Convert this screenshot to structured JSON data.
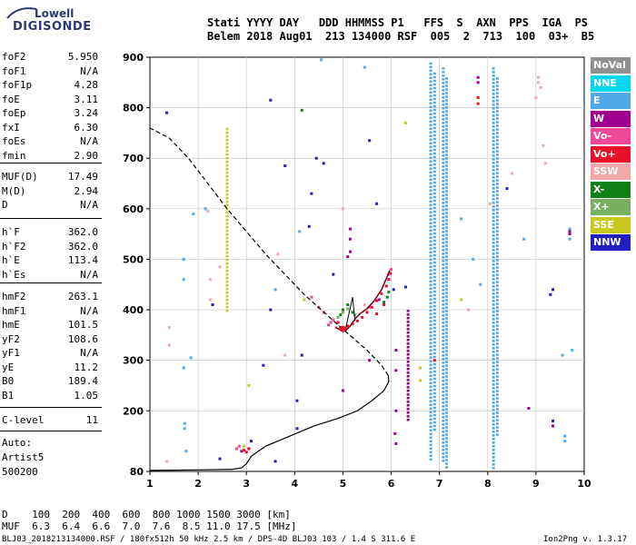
{
  "logo": {
    "line1": "Lowell",
    "line2": "DIGISONDE"
  },
  "header": {
    "line1": "Stati YYYY DAY   DDD HHMMSS P1   FFS  S  AXN  PPS  IGA  PS",
    "line2": "Belem 2018 Aug01  213 134000 RSF  005  2  713  100  03+  B5"
  },
  "params": {
    "g1": [
      {
        "name": "foF2",
        "value": "5.950"
      },
      {
        "name": "foF1",
        "value": "N/A"
      },
      {
        "name": "foF1p",
        "value": "4.28"
      },
      {
        "name": "foE",
        "value": "3.11"
      },
      {
        "name": "foEp",
        "value": "3.24"
      },
      {
        "name": "fxI",
        "value": "6.30"
      },
      {
        "name": "foEs",
        "value": "N/A"
      },
      {
        "name": "fmin",
        "value": "2.90"
      }
    ],
    "g2": [
      {
        "name": "MUF(D)",
        "value": "17.49"
      },
      {
        "name": "M(D)",
        "value": "2.94"
      },
      {
        "name": "D",
        "value": "N/A"
      }
    ],
    "g3": [
      {
        "name": "h`F",
        "value": "362.0"
      },
      {
        "name": "h`F2",
        "value": "362.0"
      },
      {
        "name": "h`E",
        "value": "113.4"
      },
      {
        "name": "h`Es",
        "value": "N/A"
      }
    ],
    "g4": [
      {
        "name": "hmF2",
        "value": "263.1"
      },
      {
        "name": "hmF1",
        "value": "N/A"
      },
      {
        "name": "hmE",
        "value": "101.5"
      },
      {
        "name": "yF2",
        "value": "108.6"
      },
      {
        "name": "yF1",
        "value": "N/A"
      },
      {
        "name": "yE",
        "value": "11.2"
      },
      {
        "name": "B0",
        "value": "189.4"
      },
      {
        "name": "B1",
        "value": "1.05"
      }
    ],
    "g5": [
      {
        "name": "C-level",
        "value": "11"
      }
    ]
  },
  "auto": {
    "l1": "Auto:",
    "l2": "Artist5",
    "l3": "500200"
  },
  "legend": [
    {
      "label": "NoVal",
      "color": "#909090"
    },
    {
      "label": "NNE",
      "color": "#00d8f0"
    },
    {
      "label": "E",
      "color": "#50a8e8"
    },
    {
      "label": "W",
      "color": "#a00090"
    },
    {
      "label": "Vo-",
      "color": "#f04898"
    },
    {
      "label": "Vo+",
      "color": "#e8102a"
    },
    {
      "label": "SSW",
      "color": "#f0a8a8"
    },
    {
      "label": "X-",
      "color": "#108018"
    },
    {
      "label": "X+",
      "color": "#78b060"
    },
    {
      "label": "SSE",
      "color": "#c8c820"
    },
    {
      "label": "NNW",
      "color": "#2020c0"
    }
  ],
  "footer": {
    "row1": "D    100  200  400  600  800 1000 1500 3000 [km]",
    "row2": "MUF  6.3  6.4  6.6  7.0  7.6  8.5 11.0 17.5 [MHz]",
    "source": "BLJ03_2018213134000.RSF / 180fx512h 50 kHz 2.5 km / DPS-4D BLJ03 103 / 1.4 S 311.6 E",
    "version": "Ion2Png v. 1.3.17"
  },
  "chart_data": {
    "type": "scatter",
    "xlim": [
      1,
      10
    ],
    "ylim": [
      80,
      900
    ],
    "xticks": [
      1,
      2,
      3,
      4,
      5,
      6,
      7,
      8,
      9,
      10
    ],
    "yticks": [
      80,
      200,
      300,
      400,
      500,
      600,
      700,
      800,
      900
    ],
    "grid": true,
    "series": [
      {
        "name": "E",
        "color": "#50a8e8",
        "mode": "columns",
        "columns": [
          {
            "x": 6.82,
            "y0": 100,
            "y1": 890
          },
          {
            "x": 6.9,
            "y0": 160,
            "y1": 870
          },
          {
            "x": 7.08,
            "y0": 100,
            "y1": 880
          },
          {
            "x": 7.15,
            "y0": 90,
            "y1": 860
          },
          {
            "x": 8.12,
            "y0": 82,
            "y1": 880
          },
          {
            "x": 8.2,
            "y0": 150,
            "y1": 860
          }
        ],
        "points": [
          [
            1.7,
            500
          ],
          [
            1.7,
            460
          ],
          [
            1.7,
            285
          ],
          [
            1.72,
            175
          ],
          [
            1.72,
            165
          ],
          [
            1.75,
            120
          ],
          [
            1.9,
            590
          ],
          [
            1.85,
            305
          ],
          [
            2.15,
            600
          ],
          [
            3.6,
            440
          ],
          [
            4.1,
            555
          ],
          [
            4.55,
            895
          ],
          [
            5.45,
            880
          ],
          [
            7.45,
            580
          ],
          [
            7.7,
            500
          ],
          [
            7.85,
            450
          ],
          [
            8.75,
            540
          ],
          [
            9.55,
            310
          ],
          [
            9.6,
            150
          ],
          [
            9.6,
            140
          ],
          [
            9.7,
            560
          ],
          [
            9.7,
            540
          ],
          [
            9.75,
            320
          ]
        ]
      },
      {
        "name": "W",
        "color": "#a00090",
        "mode": "columns",
        "columns": [
          {
            "x": 6.35,
            "y0": 180,
            "y1": 400
          }
        ],
        "points": [
          [
            5.15,
            560
          ],
          [
            5.15,
            540
          ],
          [
            5.15,
            515
          ],
          [
            5.1,
            505
          ],
          [
            5.55,
            300
          ],
          [
            5.75,
            420
          ],
          [
            6.1,
            320
          ],
          [
            6.1,
            280
          ],
          [
            6.1,
            200
          ],
          [
            6.08,
            155
          ],
          [
            6.1,
            135
          ],
          [
            5.0,
            240
          ],
          [
            7.8,
            860
          ],
          [
            7.8,
            850
          ],
          [
            8.85,
            205
          ],
          [
            9.7,
            555
          ],
          [
            9.7,
            550
          ],
          [
            9.35,
            170
          ],
          [
            3.05,
            125
          ],
          [
            2.9,
            120
          ]
        ]
      },
      {
        "name": "NNW",
        "color": "#2020c0",
        "mode": "points",
        "points": [
          [
            1.35,
            790
          ],
          [
            3.5,
            815
          ],
          [
            3.6,
            100
          ],
          [
            3.8,
            685
          ],
          [
            4.15,
            310
          ],
          [
            4.3,
            565
          ],
          [
            4.6,
            690
          ],
          [
            5.55,
            735
          ],
          [
            5.7,
            610
          ],
          [
            5.95,
            460
          ],
          [
            6.05,
            440
          ],
          [
            3.35,
            290
          ],
          [
            3.5,
            400
          ],
          [
            4.05,
            220
          ],
          [
            4.05,
            165
          ],
          [
            2.45,
            105
          ],
          [
            3.1,
            140
          ],
          [
            4.35,
            630
          ],
          [
            9.35,
            180
          ],
          [
            9.35,
            440
          ],
          [
            9.3,
            430
          ],
          [
            8.4,
            640
          ],
          [
            6.3,
            445
          ],
          [
            4.45,
            700
          ],
          [
            2.3,
            410
          ],
          [
            4.8,
            470
          ]
        ]
      },
      {
        "name": "Vo+",
        "color": "#e8102a",
        "mode": "points",
        "points": [
          [
            4.9,
            375
          ],
          [
            4.95,
            365
          ],
          [
            5.0,
            360
          ],
          [
            5.05,
            362
          ],
          [
            5.1,
            368
          ],
          [
            5.2,
            372
          ],
          [
            5.3,
            378
          ],
          [
            5.4,
            385
          ],
          [
            5.5,
            395
          ],
          [
            5.6,
            405
          ],
          [
            5.7,
            418
          ],
          [
            5.8,
            432
          ],
          [
            5.9,
            447
          ],
          [
            5.95,
            460
          ],
          [
            5.98,
            472
          ],
          [
            5.7,
            392
          ],
          [
            5.85,
            410
          ],
          [
            7.8,
            820
          ],
          [
            7.8,
            808
          ],
          [
            6.9,
            300
          ],
          [
            3.05,
            125
          ],
          [
            3.0,
            118
          ],
          [
            2.95,
            122
          ]
        ]
      },
      {
        "name": "Vo-",
        "color": "#f04898",
        "mode": "points",
        "points": [
          [
            4.7,
            370
          ],
          [
            4.75,
            375
          ],
          [
            4.8,
            380
          ],
          [
            4.6,
            395
          ],
          [
            4.5,
            405
          ],
          [
            4.35,
            425
          ],
          [
            5.55,
            405
          ],
          [
            5.95,
            470
          ],
          [
            6.0,
            480
          ],
          [
            2.8,
            125
          ],
          [
            2.85,
            130
          ]
        ]
      },
      {
        "name": "SSW",
        "color": "#f0a8a8",
        "mode": "points",
        "points": [
          [
            1.4,
            365
          ],
          [
            1.4,
            330
          ],
          [
            1.35,
            100
          ],
          [
            2.2,
            595
          ],
          [
            2.25,
            460
          ],
          [
            2.25,
            420
          ],
          [
            2.45,
            485
          ],
          [
            3.8,
            310
          ],
          [
            4.85,
            365
          ],
          [
            5.45,
            410
          ],
          [
            7.6,
            400
          ],
          [
            8.05,
            610
          ],
          [
            9.0,
            820
          ],
          [
            9.05,
            860
          ],
          [
            9.05,
            850
          ],
          [
            9.1,
            840
          ],
          [
            9.15,
            725
          ],
          [
            9.2,
            690
          ],
          [
            8.5,
            670
          ],
          [
            3.65,
            510
          ],
          [
            5.0,
            600
          ]
        ]
      },
      {
        "name": "X-",
        "color": "#108018",
        "mode": "points",
        "points": [
          [
            4.15,
            795
          ],
          [
            4.95,
            390
          ],
          [
            5.0,
            400
          ],
          [
            5.1,
            410
          ],
          [
            5.2,
            395
          ],
          [
            5.85,
            415
          ],
          [
            5.92,
            425
          ],
          [
            5.95,
            435
          ]
        ]
      },
      {
        "name": "X+",
        "color": "#78b060",
        "mode": "points",
        "points": [
          [
            4.9,
            385
          ],
          [
            5.0,
            395
          ],
          [
            5.1,
            402
          ],
          [
            5.25,
            390
          ]
        ]
      },
      {
        "name": "SSE",
        "color": "#c8c820",
        "mode": "columns",
        "columns": [
          {
            "x": 2.6,
            "y0": 400,
            "y1": 760
          }
        ],
        "points": [
          [
            3.05,
            250
          ],
          [
            2.95,
            130
          ],
          [
            6.3,
            770
          ],
          [
            6.6,
            285
          ],
          [
            6.6,
            260
          ],
          [
            4.2,
            420
          ],
          [
            7.45,
            420
          ]
        ]
      }
    ],
    "ionogram_trace": [
      [
        4.85,
        365
      ],
      [
        4.95,
        360
      ],
      [
        5.05,
        358
      ],
      [
        5.15,
        368
      ],
      [
        5.25,
        382
      ],
      [
        5.35,
        392
      ],
      [
        5.5,
        402
      ],
      [
        5.65,
        418
      ],
      [
        5.8,
        440
      ],
      [
        5.9,
        462
      ],
      [
        5.97,
        478
      ]
    ],
    "profile_curve": [
      [
        1.0,
        82
      ],
      [
        2.0,
        83
      ],
      [
        2.7,
        84
      ],
      [
        2.9,
        87
      ],
      [
        3.0,
        95
      ],
      [
        3.1,
        110
      ],
      [
        3.4,
        130
      ],
      [
        3.9,
        150
      ],
      [
        4.4,
        170
      ],
      [
        4.9,
        185
      ],
      [
        5.3,
        200
      ],
      [
        5.6,
        220
      ],
      [
        5.85,
        240
      ],
      [
        5.95,
        258
      ],
      [
        5.94,
        270
      ],
      [
        5.8,
        290
      ],
      [
        5.5,
        320
      ],
      [
        5.2,
        345
      ],
      [
        4.9,
        370
      ],
      [
        4.55,
        400
      ],
      [
        4.2,
        430
      ],
      [
        3.8,
        470
      ],
      [
        3.4,
        510
      ],
      [
        3.0,
        555
      ],
      [
        2.6,
        600
      ],
      [
        2.2,
        650
      ],
      [
        1.8,
        700
      ],
      [
        1.4,
        740
      ],
      [
        1.0,
        760
      ]
    ]
  }
}
